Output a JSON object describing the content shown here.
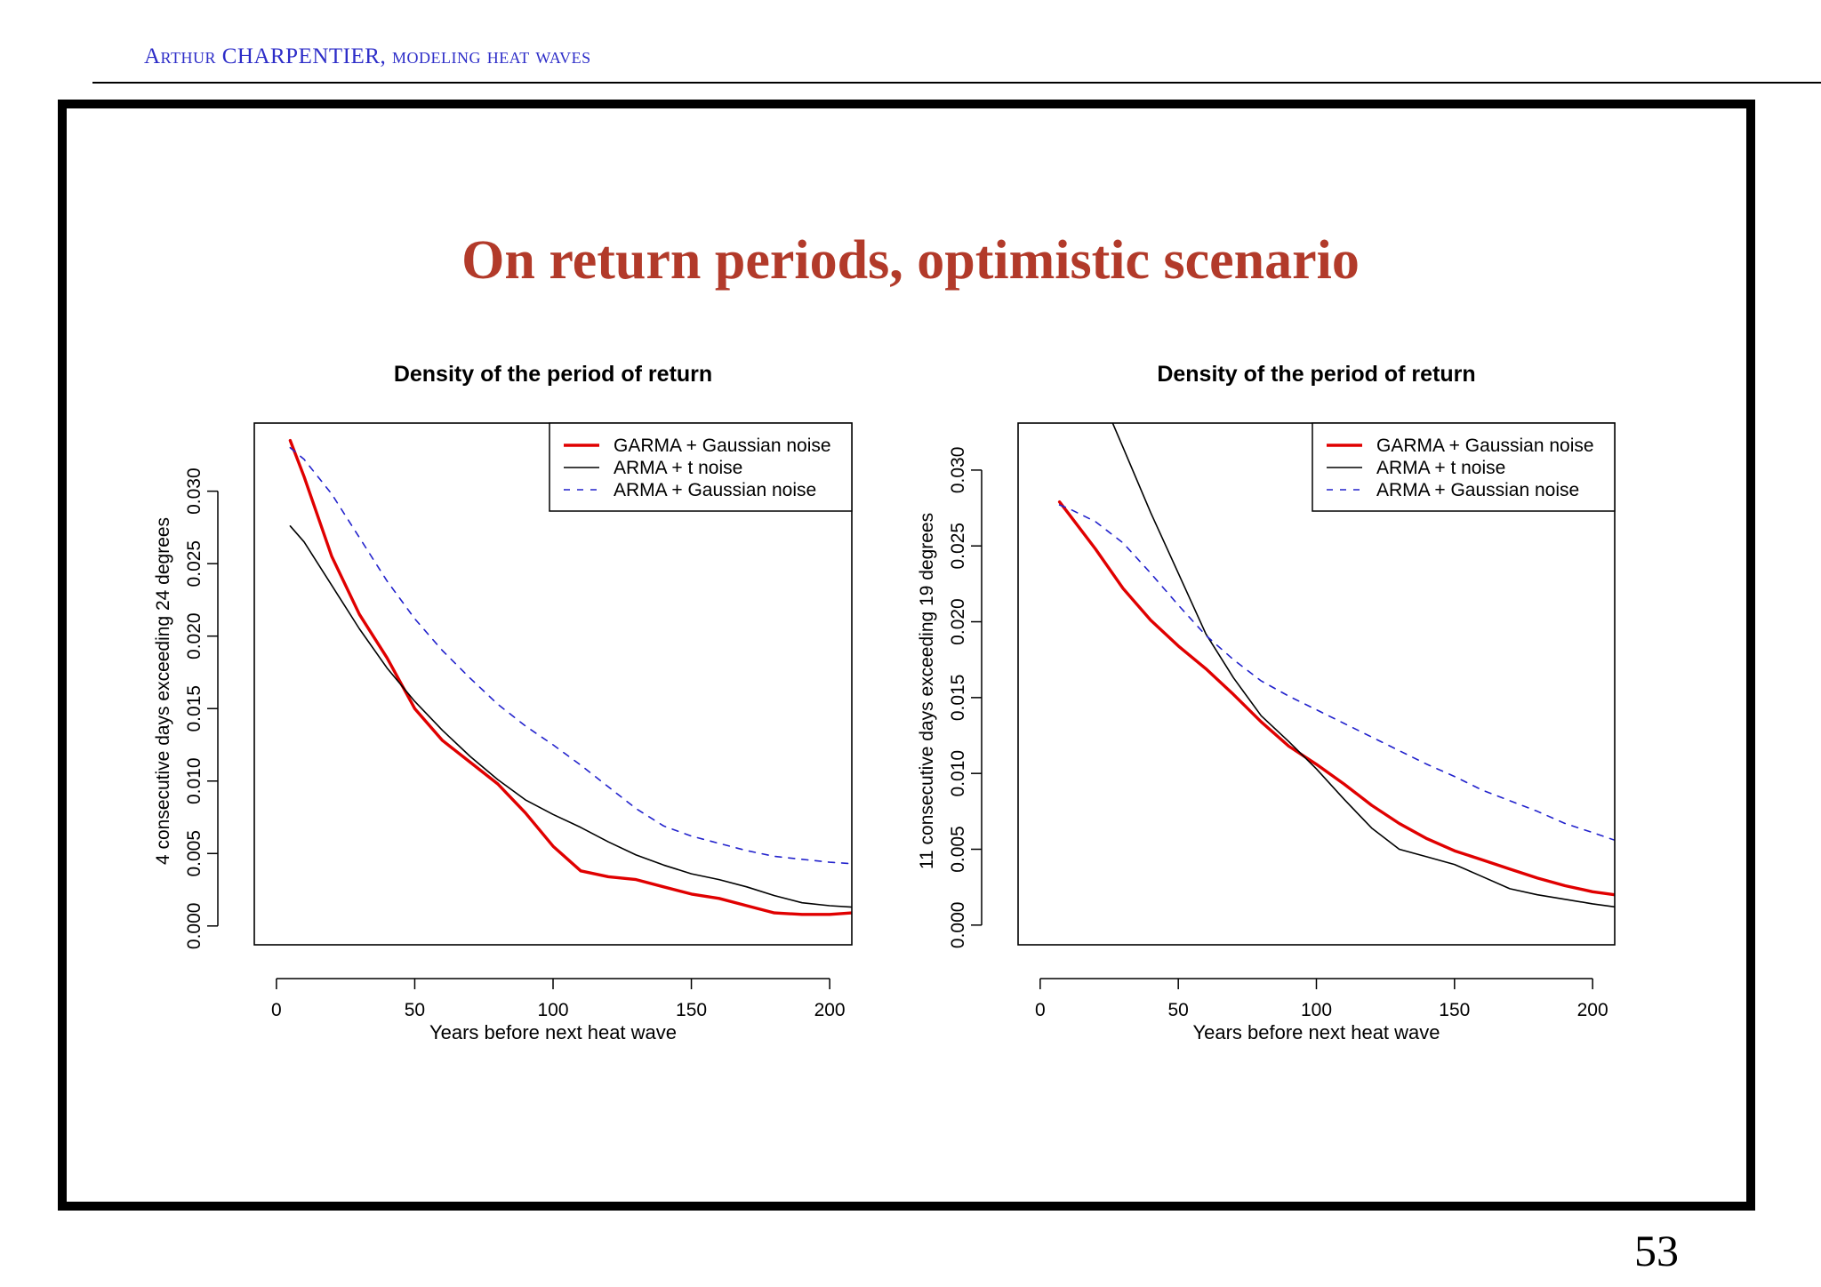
{
  "header": {
    "text": "Arthur CHARPENTIER, modeling heat waves"
  },
  "slide": {
    "title": "On return periods, optimistic scenario",
    "page_number": "53"
  },
  "colors": {
    "garma": "#e00000",
    "arma_t": "#000000",
    "arma_gauss": "#2222cc",
    "title": "#b23a2a",
    "header": "#2d2dc8"
  },
  "chart_data": [
    {
      "type": "line",
      "title": "Density of the period of return",
      "xlabel": "Years before next heat wave",
      "ylabel": "4 consecutive days exceeding 24 degrees",
      "xlim": [
        -8,
        208
      ],
      "ylim": [
        -0.0013,
        0.0347
      ],
      "xticks": [
        0,
        50,
        100,
        150,
        200
      ],
      "yticks": [
        "0.000",
        "0.005",
        "0.010",
        "0.015",
        "0.020",
        "0.025",
        "0.030"
      ],
      "legend_position": "top-right",
      "legend": [
        "GARMA + Gaussian noise",
        "ARMA + t noise",
        "ARMA + Gaussian noise"
      ],
      "series": [
        {
          "name": "GARMA + Gaussian noise",
          "style": "thick-solid",
          "x": [
            5,
            10,
            20,
            30,
            40,
            50,
            60,
            70,
            80,
            90,
            100,
            110,
            120,
            130,
            140,
            150,
            160,
            170,
            180,
            190,
            200,
            208
          ],
          "y": [
            0.0335,
            0.031,
            0.0255,
            0.0215,
            0.0185,
            0.015,
            0.0128,
            0.0113,
            0.0098,
            0.0078,
            0.0055,
            0.0038,
            0.0034,
            0.0032,
            0.0027,
            0.0022,
            0.0019,
            0.0014,
            0.0009,
            0.0008,
            0.0008,
            0.0009
          ]
        },
        {
          "name": "ARMA + t noise",
          "style": "thin-solid",
          "x": [
            5,
            10,
            20,
            30,
            40,
            50,
            60,
            70,
            80,
            90,
            100,
            110,
            120,
            130,
            140,
            150,
            160,
            170,
            180,
            190,
            200,
            208
          ],
          "y": [
            0.0276,
            0.0265,
            0.0235,
            0.0205,
            0.0178,
            0.0155,
            0.0135,
            0.0117,
            0.0101,
            0.0087,
            0.0077,
            0.0068,
            0.0058,
            0.0049,
            0.0042,
            0.0036,
            0.0032,
            0.0027,
            0.0021,
            0.0016,
            0.0014,
            0.0013
          ]
        },
        {
          "name": "ARMA + Gaussian noise",
          "style": "dashed",
          "x": [
            5,
            10,
            20,
            30,
            40,
            50,
            60,
            70,
            80,
            90,
            100,
            110,
            120,
            130,
            140,
            150,
            160,
            170,
            180,
            190,
            200,
            208
          ],
          "y": [
            0.033,
            0.0322,
            0.0298,
            0.0268,
            0.0238,
            0.0212,
            0.019,
            0.0171,
            0.0153,
            0.0138,
            0.0125,
            0.0111,
            0.0096,
            0.0081,
            0.0069,
            0.0062,
            0.0057,
            0.0052,
            0.0048,
            0.0046,
            0.0044,
            0.0043
          ]
        }
      ]
    },
    {
      "type": "line",
      "title": "Density of the period of return",
      "xlabel": "Years before next heat wave",
      "ylabel": "11 consecutive days exceeding 19 degrees",
      "xlim": [
        -8,
        208
      ],
      "ylim": [
        -0.0013,
        0.0331
      ],
      "xticks": [
        0,
        50,
        100,
        150,
        200
      ],
      "yticks": [
        "0.000",
        "0.005",
        "0.010",
        "0.015",
        "0.020",
        "0.025",
        "0.030"
      ],
      "legend_position": "top-right",
      "legend": [
        "GARMA + Gaussian noise",
        "ARMA + t noise",
        "ARMA + Gaussian noise"
      ],
      "series": [
        {
          "name": "GARMA + Gaussian noise",
          "style": "thick-solid",
          "x": [
            7,
            10,
            20,
            30,
            40,
            50,
            60,
            70,
            80,
            90,
            100,
            110,
            120,
            130,
            140,
            150,
            160,
            170,
            180,
            190,
            200,
            208
          ],
          "y": [
            0.0279,
            0.0272,
            0.0248,
            0.0222,
            0.0201,
            0.0184,
            0.0169,
            0.0152,
            0.0134,
            0.0118,
            0.0106,
            0.0093,
            0.0079,
            0.0067,
            0.0057,
            0.0049,
            0.0043,
            0.0037,
            0.0031,
            0.0026,
            0.0022,
            0.002
          ]
        },
        {
          "name": "ARMA + t noise",
          "style": "thin-solid",
          "x": [
            26,
            30,
            40,
            50,
            60,
            70,
            80,
            90,
            100,
            110,
            120,
            130,
            140,
            150,
            160,
            170,
            180,
            190,
            200,
            208
          ],
          "y": [
            0.0332,
            0.0315,
            0.0272,
            0.0232,
            0.0192,
            0.0163,
            0.0138,
            0.0121,
            0.0103,
            0.0083,
            0.0064,
            0.005,
            0.0045,
            0.004,
            0.0032,
            0.0024,
            0.002,
            0.0017,
            0.0014,
            0.0012
          ]
        },
        {
          "name": "ARMA + Gaussian noise",
          "style": "dashed",
          "x": [
            7,
            10,
            20,
            30,
            40,
            50,
            60,
            70,
            80,
            90,
            100,
            110,
            120,
            130,
            140,
            150,
            160,
            170,
            180,
            190,
            200,
            208
          ],
          "y": [
            0.0277,
            0.0275,
            0.0266,
            0.0252,
            0.0232,
            0.0211,
            0.0191,
            0.0175,
            0.0161,
            0.0151,
            0.0142,
            0.0133,
            0.0124,
            0.0115,
            0.0106,
            0.0098,
            0.0089,
            0.0082,
            0.0075,
            0.0067,
            0.0061,
            0.0056
          ]
        }
      ]
    }
  ]
}
